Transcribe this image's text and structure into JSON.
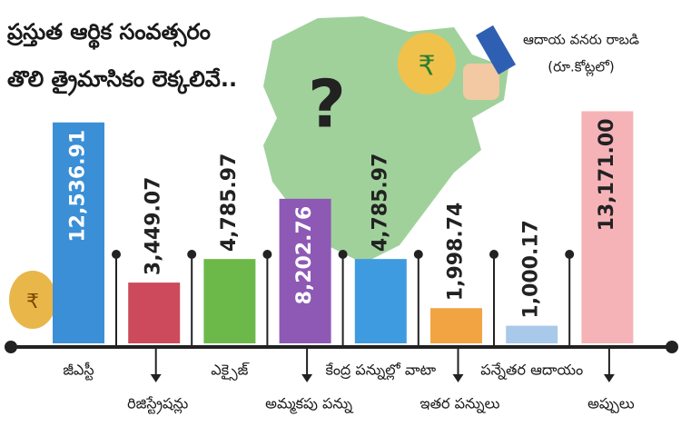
{
  "chart_data": {
    "type": "bar",
    "title": [
      "ప్రస్తుత ఆర్థిక సంవత్సరం",
      "తొలి త్రైమాసికం లెక్కలివే.."
    ],
    "subtitle": [
      "ఆదాయ వనరు రాబడి",
      "(రూ.కోట్లలో)"
    ],
    "question_mark": "?",
    "currency_symbol": "₹",
    "categories": [
      "జీఎస్టీ",
      "రిజిస్ట్రేషన్లు",
      "ఎక్సైజ్",
      "అమ్మకపు పన్ను",
      "కేంద్ర పన్నుల్లో వాటా",
      "ఇతర పన్నులు",
      "పన్నేతర ఆదాయం",
      "అప్పులు"
    ],
    "values": [
      12536.91,
      3449.07,
      4785.97,
      8202.76,
      4785.97,
      1998.74,
      1000.17,
      13171.0
    ],
    "value_labels": [
      "12,536.91",
      "3,449.07",
      "4,785.97",
      "8,202.76",
      "4,785.97",
      "1,998.74",
      "1,000.17",
      "13,171.00"
    ],
    "colors": [
      "#3b8fd6",
      "#cc4a5c",
      "#6cb94a",
      "#8d59b5",
      "#3e9be0",
      "#f2a443",
      "#a9c9ea",
      "#f5b3b8"
    ],
    "value_label_colors": [
      "#ffffff",
      "#222222",
      "#222222",
      "#ffffff",
      "#222222",
      "#222222",
      "#222222",
      "#222222"
    ]
  }
}
